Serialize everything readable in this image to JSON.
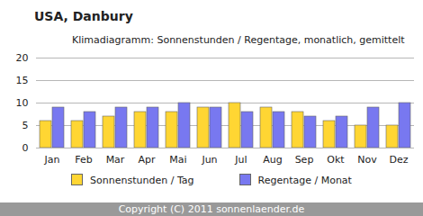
{
  "chart_data": {
    "type": "bar",
    "title": "USA, Danbury",
    "subtitle": "Klimadiagramm: Sonnenstunden / Regentage, monatlich, gemittelt",
    "annotations": [
      "Copyright (C) 2011 sonnenlaender.de"
    ],
    "categories": [
      "Jan",
      "Feb",
      "Mar",
      "Apr",
      "Mai",
      "Jun",
      "Jul",
      "Aug",
      "Sep",
      "Okt",
      "Nov",
      "Dez"
    ],
    "series": [
      {
        "name": "Sonnenstunden / Tag",
        "color": "#ffd633",
        "values": [
          6,
          6,
          7,
          8,
          8,
          9,
          10,
          9,
          8,
          6,
          5,
          5
        ]
      },
      {
        "name": "Regentage / Monat",
        "color": "#7878f0",
        "values": [
          9,
          8,
          9,
          9,
          10,
          9,
          8,
          8,
          7,
          7,
          9,
          10
        ]
      }
    ],
    "ylim": [
      0,
      20
    ],
    "yticks": [
      0,
      5,
      10,
      15,
      20
    ],
    "grid": true,
    "legend": "bottom"
  }
}
